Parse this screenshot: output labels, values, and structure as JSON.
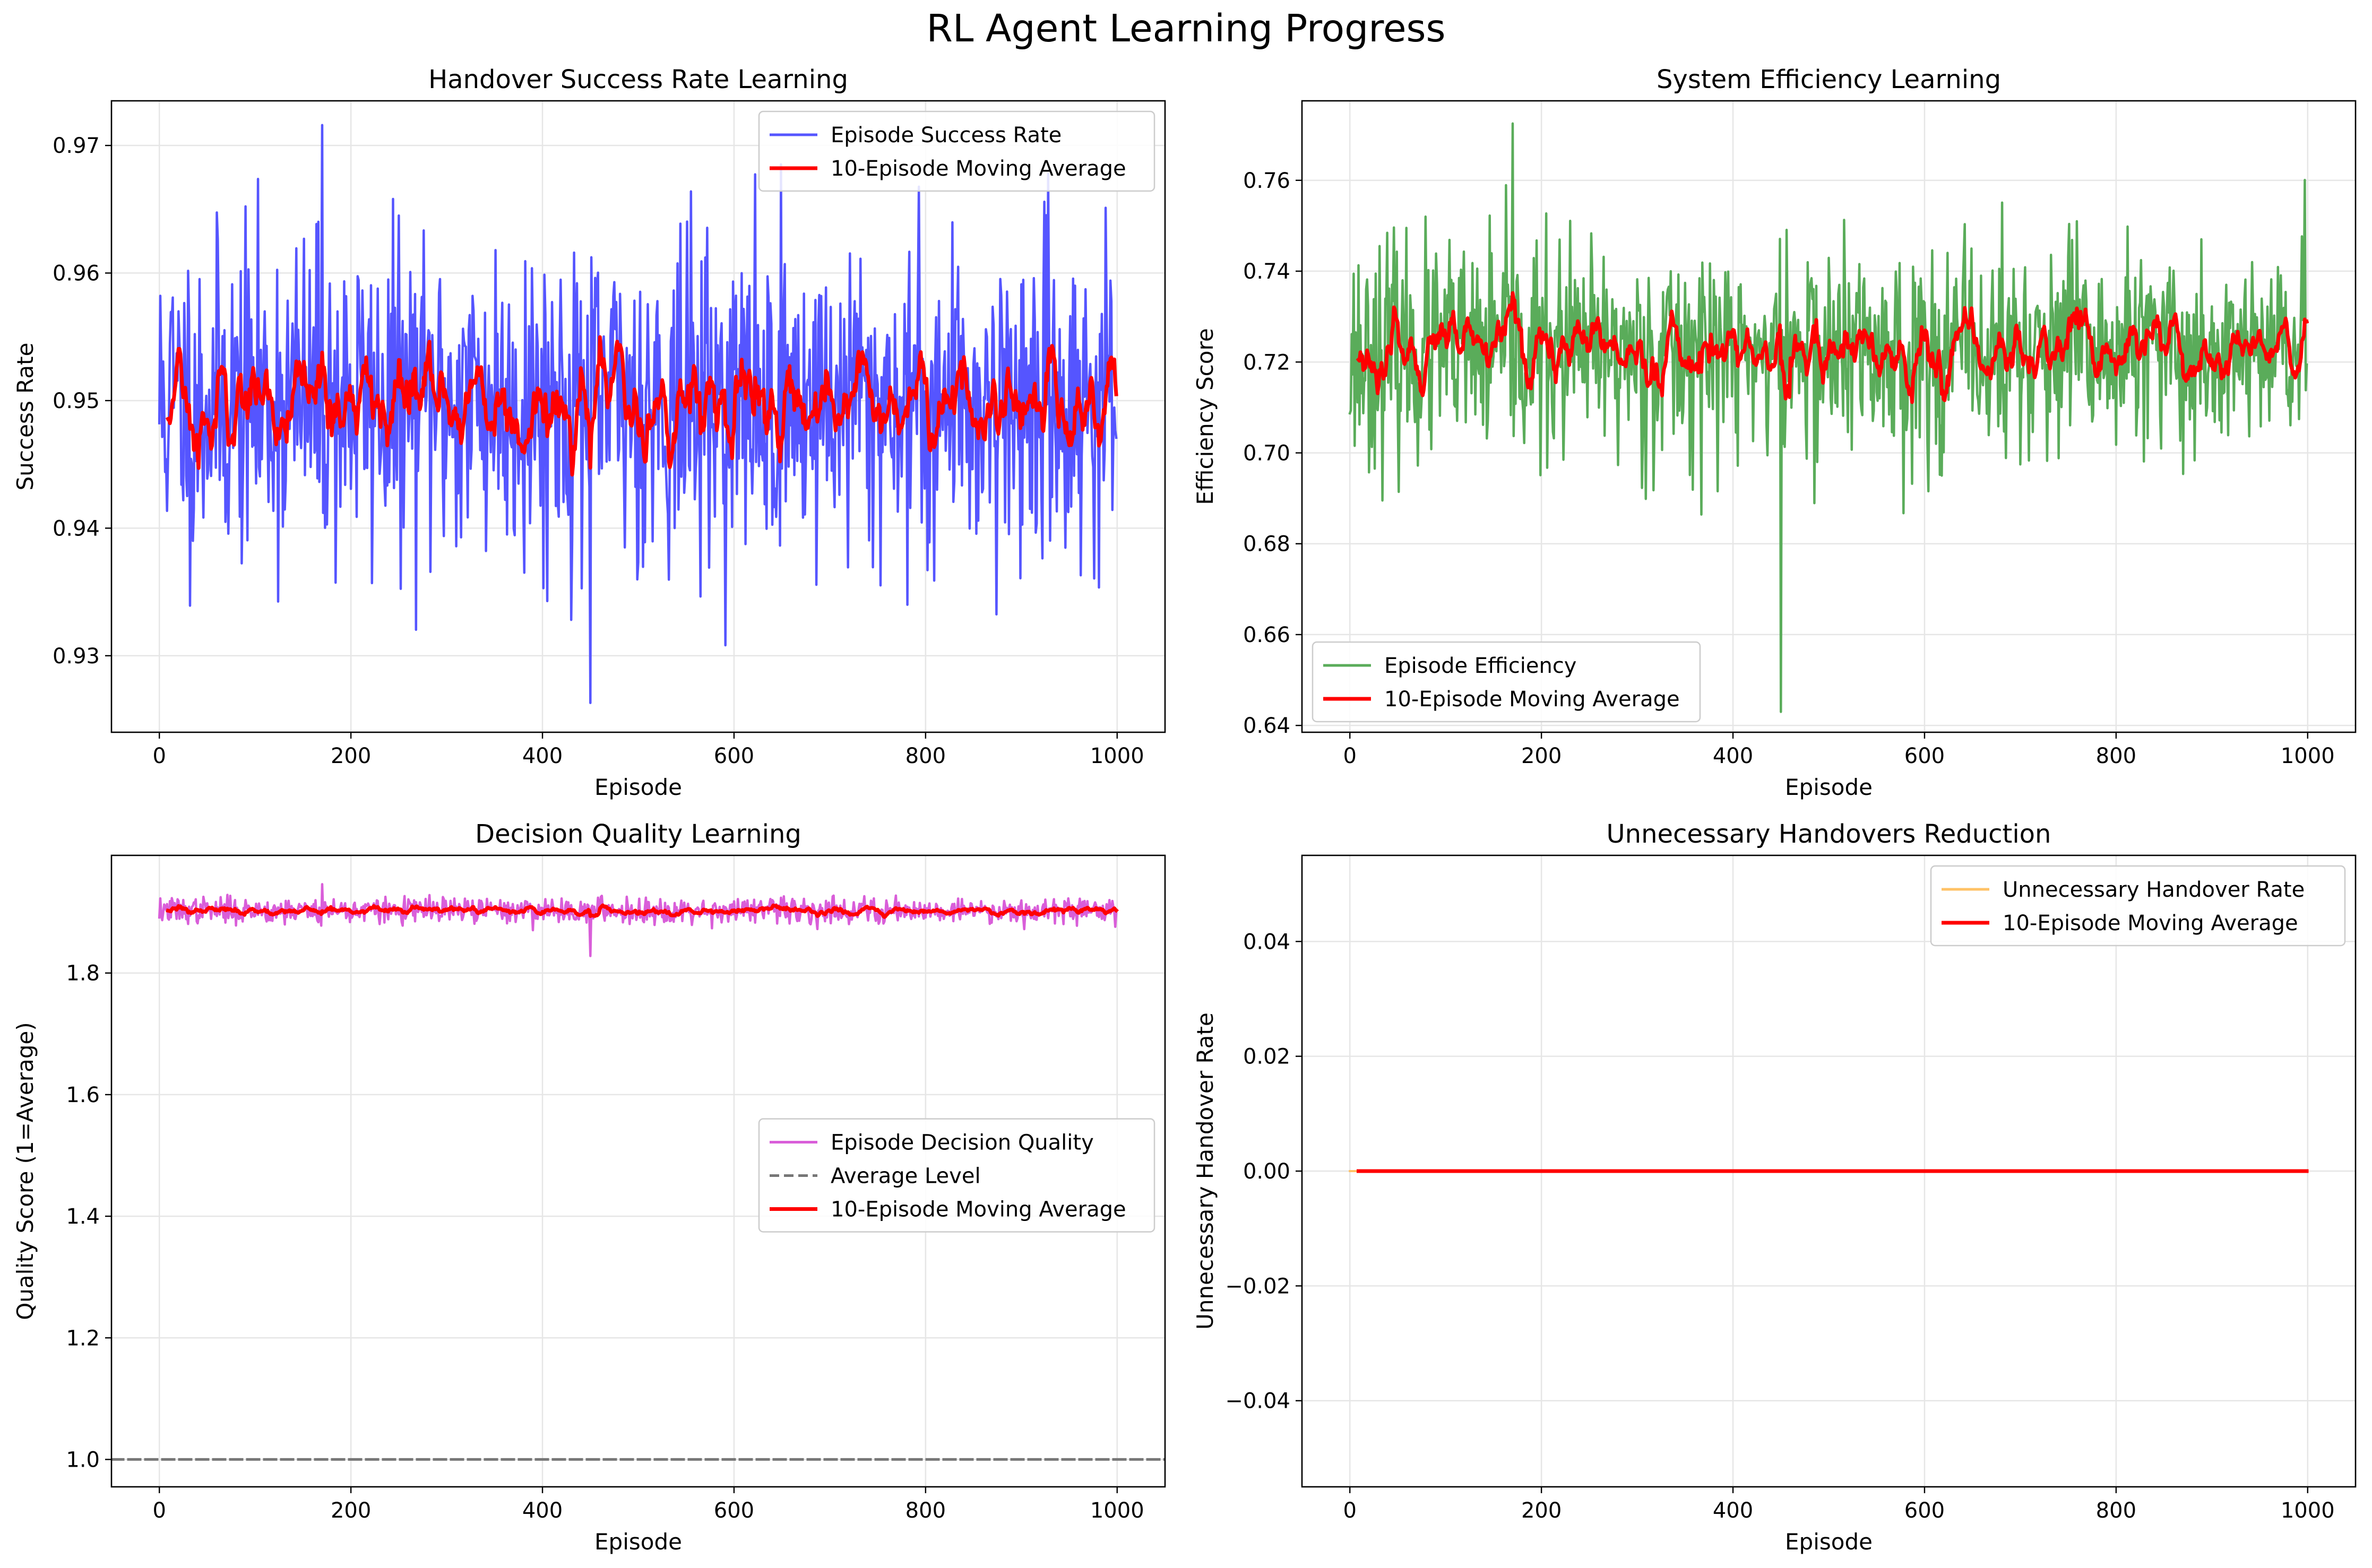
{
  "suptitle": "RL Agent Learning Progress",
  "colors": {
    "success": "#5555ff",
    "efficiency": "#5aac5a",
    "quality": "#d95ed9",
    "unnecessary": "#ffc266",
    "moving_avg": "#ff0000",
    "average_level": "#777777",
    "grid": "#e6e6e6"
  },
  "chart_data": [
    {
      "id": "success",
      "type": "line",
      "title": "Handover Success Rate Learning",
      "xlabel": "Episode",
      "ylabel": "Success Rate",
      "xlim": [
        -50,
        1050
      ],
      "ylim": [
        0.924,
        0.9735
      ],
      "xticks": [
        0,
        200,
        400,
        600,
        800,
        1000
      ],
      "xtick_labels": [
        "0",
        "200",
        "400",
        "600",
        "800",
        "1000"
      ],
      "yticks": [
        0.93,
        0.94,
        0.95,
        0.96,
        0.97
      ],
      "ytick_labels": [
        "0.93",
        "0.94",
        "0.95",
        "0.96",
        "0.97"
      ],
      "grid": true,
      "legend_position": "upper right",
      "series": [
        {
          "name": "Episode Success Rate",
          "kind": "noisy",
          "color_key": "success",
          "episodes": [
            0,
            999
          ],
          "mean": 0.95,
          "spread": 0.0085,
          "min": 0.9263,
          "max": 0.9716,
          "seed": 11
        },
        {
          "name": "10-Episode Moving Average",
          "kind": "moving_average",
          "window": 10,
          "color_key": "moving_avg"
        }
      ]
    },
    {
      "id": "efficiency",
      "type": "line",
      "title": "System Efficiency Learning",
      "xlabel": "Episode",
      "ylabel": "Efficiency Score",
      "xlim": [
        -50,
        1050
      ],
      "ylim": [
        0.6385,
        0.7775
      ],
      "xticks": [
        0,
        200,
        400,
        600,
        800,
        1000
      ],
      "xtick_labels": [
        "0",
        "200",
        "400",
        "600",
        "800",
        "1000"
      ],
      "yticks": [
        0.64,
        0.66,
        0.68,
        0.7,
        0.72,
        0.74,
        0.76
      ],
      "ytick_labels": [
        "0.64",
        "0.66",
        "0.68",
        "0.70",
        "0.72",
        "0.74",
        "0.76"
      ],
      "grid": true,
      "legend_position": "lower left",
      "series": [
        {
          "name": "Episode Efficiency",
          "kind": "noisy",
          "color_key": "efficiency",
          "episodes": [
            0,
            999
          ],
          "mean": 0.722,
          "spread": 0.016,
          "min": 0.643,
          "max": 0.7725,
          "seed": 23
        },
        {
          "name": "10-Episode Moving Average",
          "kind": "moving_average",
          "window": 10,
          "color_key": "moving_avg"
        }
      ]
    },
    {
      "id": "quality",
      "type": "line",
      "title": "Decision Quality Learning",
      "xlabel": "Episode",
      "ylabel": "Quality Score (1=Average)",
      "xlim": [
        -50,
        1050
      ],
      "ylim": [
        0.955,
        1.9935
      ],
      "xticks": [
        0,
        200,
        400,
        600,
        800,
        1000
      ],
      "xtick_labels": [
        "0",
        "200",
        "400",
        "600",
        "800",
        "1000"
      ],
      "yticks": [
        1.0,
        1.2,
        1.4,
        1.6,
        1.8
      ],
      "ytick_labels": [
        "1.0",
        "1.2",
        "1.4",
        "1.6",
        "1.8"
      ],
      "grid": true,
      "legend_position": "center right",
      "series": [
        {
          "name": "Episode Decision Quality",
          "kind": "noisy",
          "color_key": "quality",
          "episodes": [
            0,
            999
          ],
          "mean": 1.903,
          "spread": 0.014,
          "min": 1.828,
          "max": 1.946,
          "seed": 37
        },
        {
          "name": "Average Level",
          "kind": "hline",
          "y": 1.0,
          "color_key": "average_level"
        },
        {
          "name": "10-Episode Moving Average",
          "kind": "moving_average",
          "window": 10,
          "color_key": "moving_avg"
        }
      ]
    },
    {
      "id": "unnecessary",
      "type": "line",
      "title": "Unnecessary Handovers Reduction",
      "xlabel": "Episode",
      "ylabel": "Unnecessary Handover Rate",
      "xlim": [
        -50,
        1050
      ],
      "ylim": [
        -0.055,
        0.055
      ],
      "xticks": [
        0,
        200,
        400,
        600,
        800,
        1000
      ],
      "xtick_labels": [
        "0",
        "200",
        "400",
        "600",
        "800",
        "1000"
      ],
      "yticks": [
        -0.04,
        -0.02,
        0.0,
        0.02,
        0.04
      ],
      "ytick_labels": [
        "−0.04",
        "−0.02",
        "0.00",
        "0.02",
        "0.04"
      ],
      "grid": true,
      "legend_position": "upper right",
      "series": [
        {
          "name": "Unnecessary Handover Rate",
          "kind": "constant",
          "y": 0.0,
          "color_key": "unnecessary",
          "episodes": [
            0,
            999
          ]
        },
        {
          "name": "10-Episode Moving Average",
          "kind": "constant",
          "y": 0.0,
          "color_key": "moving_avg",
          "episodes": [
            9,
            999
          ]
        }
      ]
    }
  ]
}
